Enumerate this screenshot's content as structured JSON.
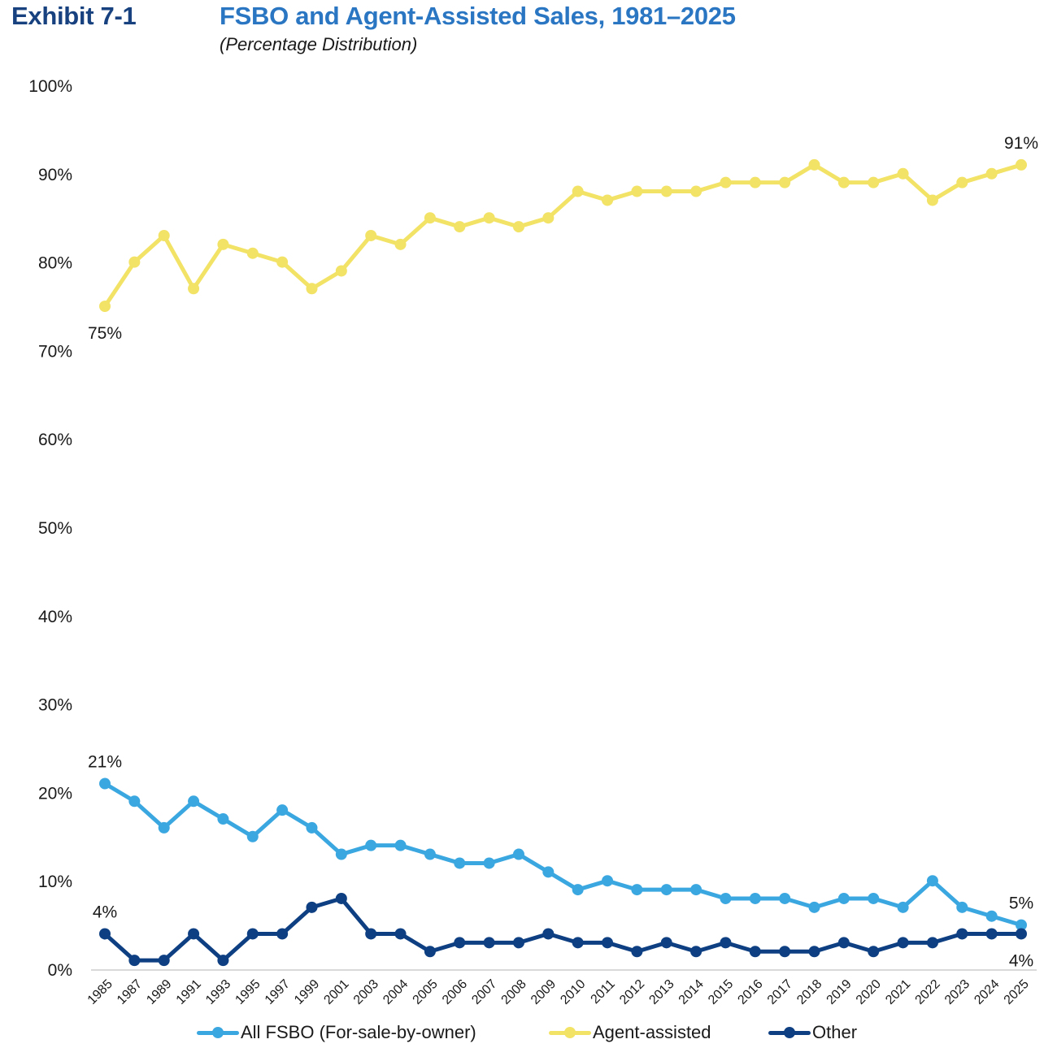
{
  "header": {
    "exhibit": "Exhibit 7-1",
    "title": "FSBO and Agent-Assisted Sales, 1981–2025",
    "subtitle": "(Percentage Distribution)"
  },
  "chart_data": {
    "type": "line",
    "title": "FSBO and Agent-Assisted Sales, 1981–2025",
    "subtitle": "(Percentage Distribution)",
    "xlabel": "",
    "ylabel": "",
    "ylim": [
      0,
      100
    ],
    "yticks": [
      "0%",
      "10%",
      "20%",
      "30%",
      "40%",
      "50%",
      "60%",
      "70%",
      "80%",
      "90%",
      "100%"
    ],
    "ytick_values": [
      0,
      10,
      20,
      30,
      40,
      50,
      60,
      70,
      80,
      90,
      100
    ],
    "grid": false,
    "legend_position": "bottom",
    "categories": [
      "1985",
      "1987",
      "1989",
      "1991",
      "1993",
      "1995",
      "1997",
      "1999",
      "2001",
      "2003",
      "2004",
      "2005",
      "2006",
      "2007",
      "2008",
      "2009",
      "2010",
      "2011",
      "2012",
      "2013",
      "2014",
      "2015",
      "2016",
      "2017",
      "2018",
      "2019",
      "2020",
      "2021",
      "2022",
      "2023",
      "2024",
      "2025"
    ],
    "series": [
      {
        "name": "All FSBO (For-sale-by-owner)",
        "color": "#3ba7e0",
        "values": [
          21,
          19,
          16,
          19,
          17,
          15,
          18,
          16,
          13,
          14,
          14,
          13,
          12,
          12,
          13,
          11,
          9,
          10,
          9,
          9,
          9,
          8,
          8,
          8,
          7,
          8,
          8,
          7,
          10,
          7,
          6,
          5
        ],
        "labels": [
          {
            "index": 0,
            "text": "21%",
            "position": "above"
          },
          {
            "index": 31,
            "text": "5%",
            "position": "above"
          }
        ]
      },
      {
        "name": "Agent-assisted",
        "color": "#f2e265",
        "values": [
          75,
          80,
          83,
          77,
          82,
          81,
          80,
          77,
          79,
          83,
          82,
          85,
          84,
          85,
          84,
          85,
          88,
          87,
          88,
          88,
          88,
          89,
          89,
          89,
          91,
          89,
          89,
          90,
          87,
          89,
          90,
          91
        ],
        "labels": [
          {
            "index": 0,
            "text": "75%",
            "position": "below"
          },
          {
            "index": 31,
            "text": "91%",
            "position": "above"
          }
        ]
      },
      {
        "name": "Other",
        "color": "#0d3f82",
        "values": [
          4,
          1,
          1,
          4,
          1,
          4,
          4,
          7,
          8,
          4,
          4,
          2,
          3,
          3,
          3,
          4,
          3,
          3,
          2,
          3,
          2,
          3,
          2,
          2,
          2,
          3,
          2,
          3,
          3,
          4,
          4,
          4
        ],
        "labels": [
          {
            "index": 0,
            "text": "4%",
            "position": "above"
          },
          {
            "index": 31,
            "text": "4%",
            "position": "below"
          }
        ]
      }
    ]
  }
}
